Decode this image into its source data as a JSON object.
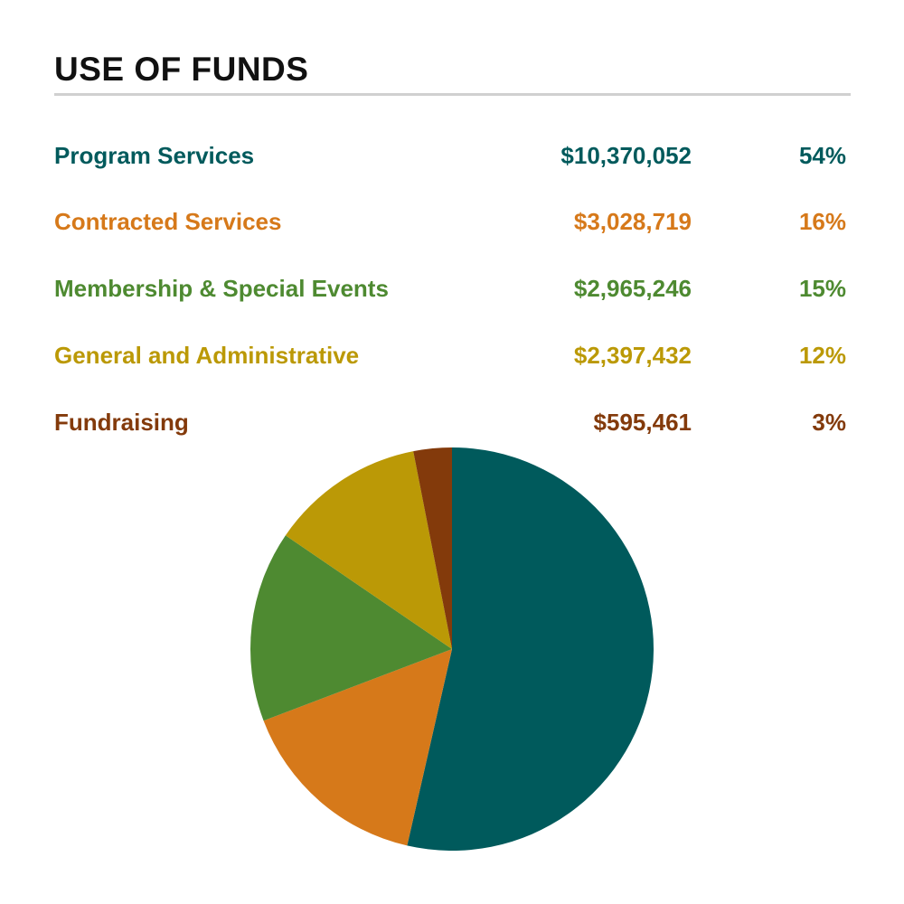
{
  "title": "USE OF FUNDS",
  "chart_data": {
    "type": "pie",
    "title": "USE OF FUNDS",
    "start": "top",
    "direction": "clockwise",
    "slices": [
      {
        "label": "Program Services",
        "amount": "$10,370,052",
        "value": 10370052,
        "percent": "54%",
        "color": "#005a5c"
      },
      {
        "label": "Contracted Services",
        "amount": "$3,028,719",
        "value": 3028719,
        "percent": "16%",
        "color": "#d6791a"
      },
      {
        "label": "Membership & Special Events",
        "amount": "$2,965,246",
        "value": 2965246,
        "percent": "15%",
        "color": "#4e8a31"
      },
      {
        "label": "General and Administrative",
        "amount": "$2,397,432",
        "value": 2397432,
        "percent": "12%",
        "color": "#bb9906"
      },
      {
        "label": "Fundraising",
        "amount": "$595,461",
        "value": 595461,
        "percent": "3%",
        "color": "#833a0b"
      }
    ]
  }
}
